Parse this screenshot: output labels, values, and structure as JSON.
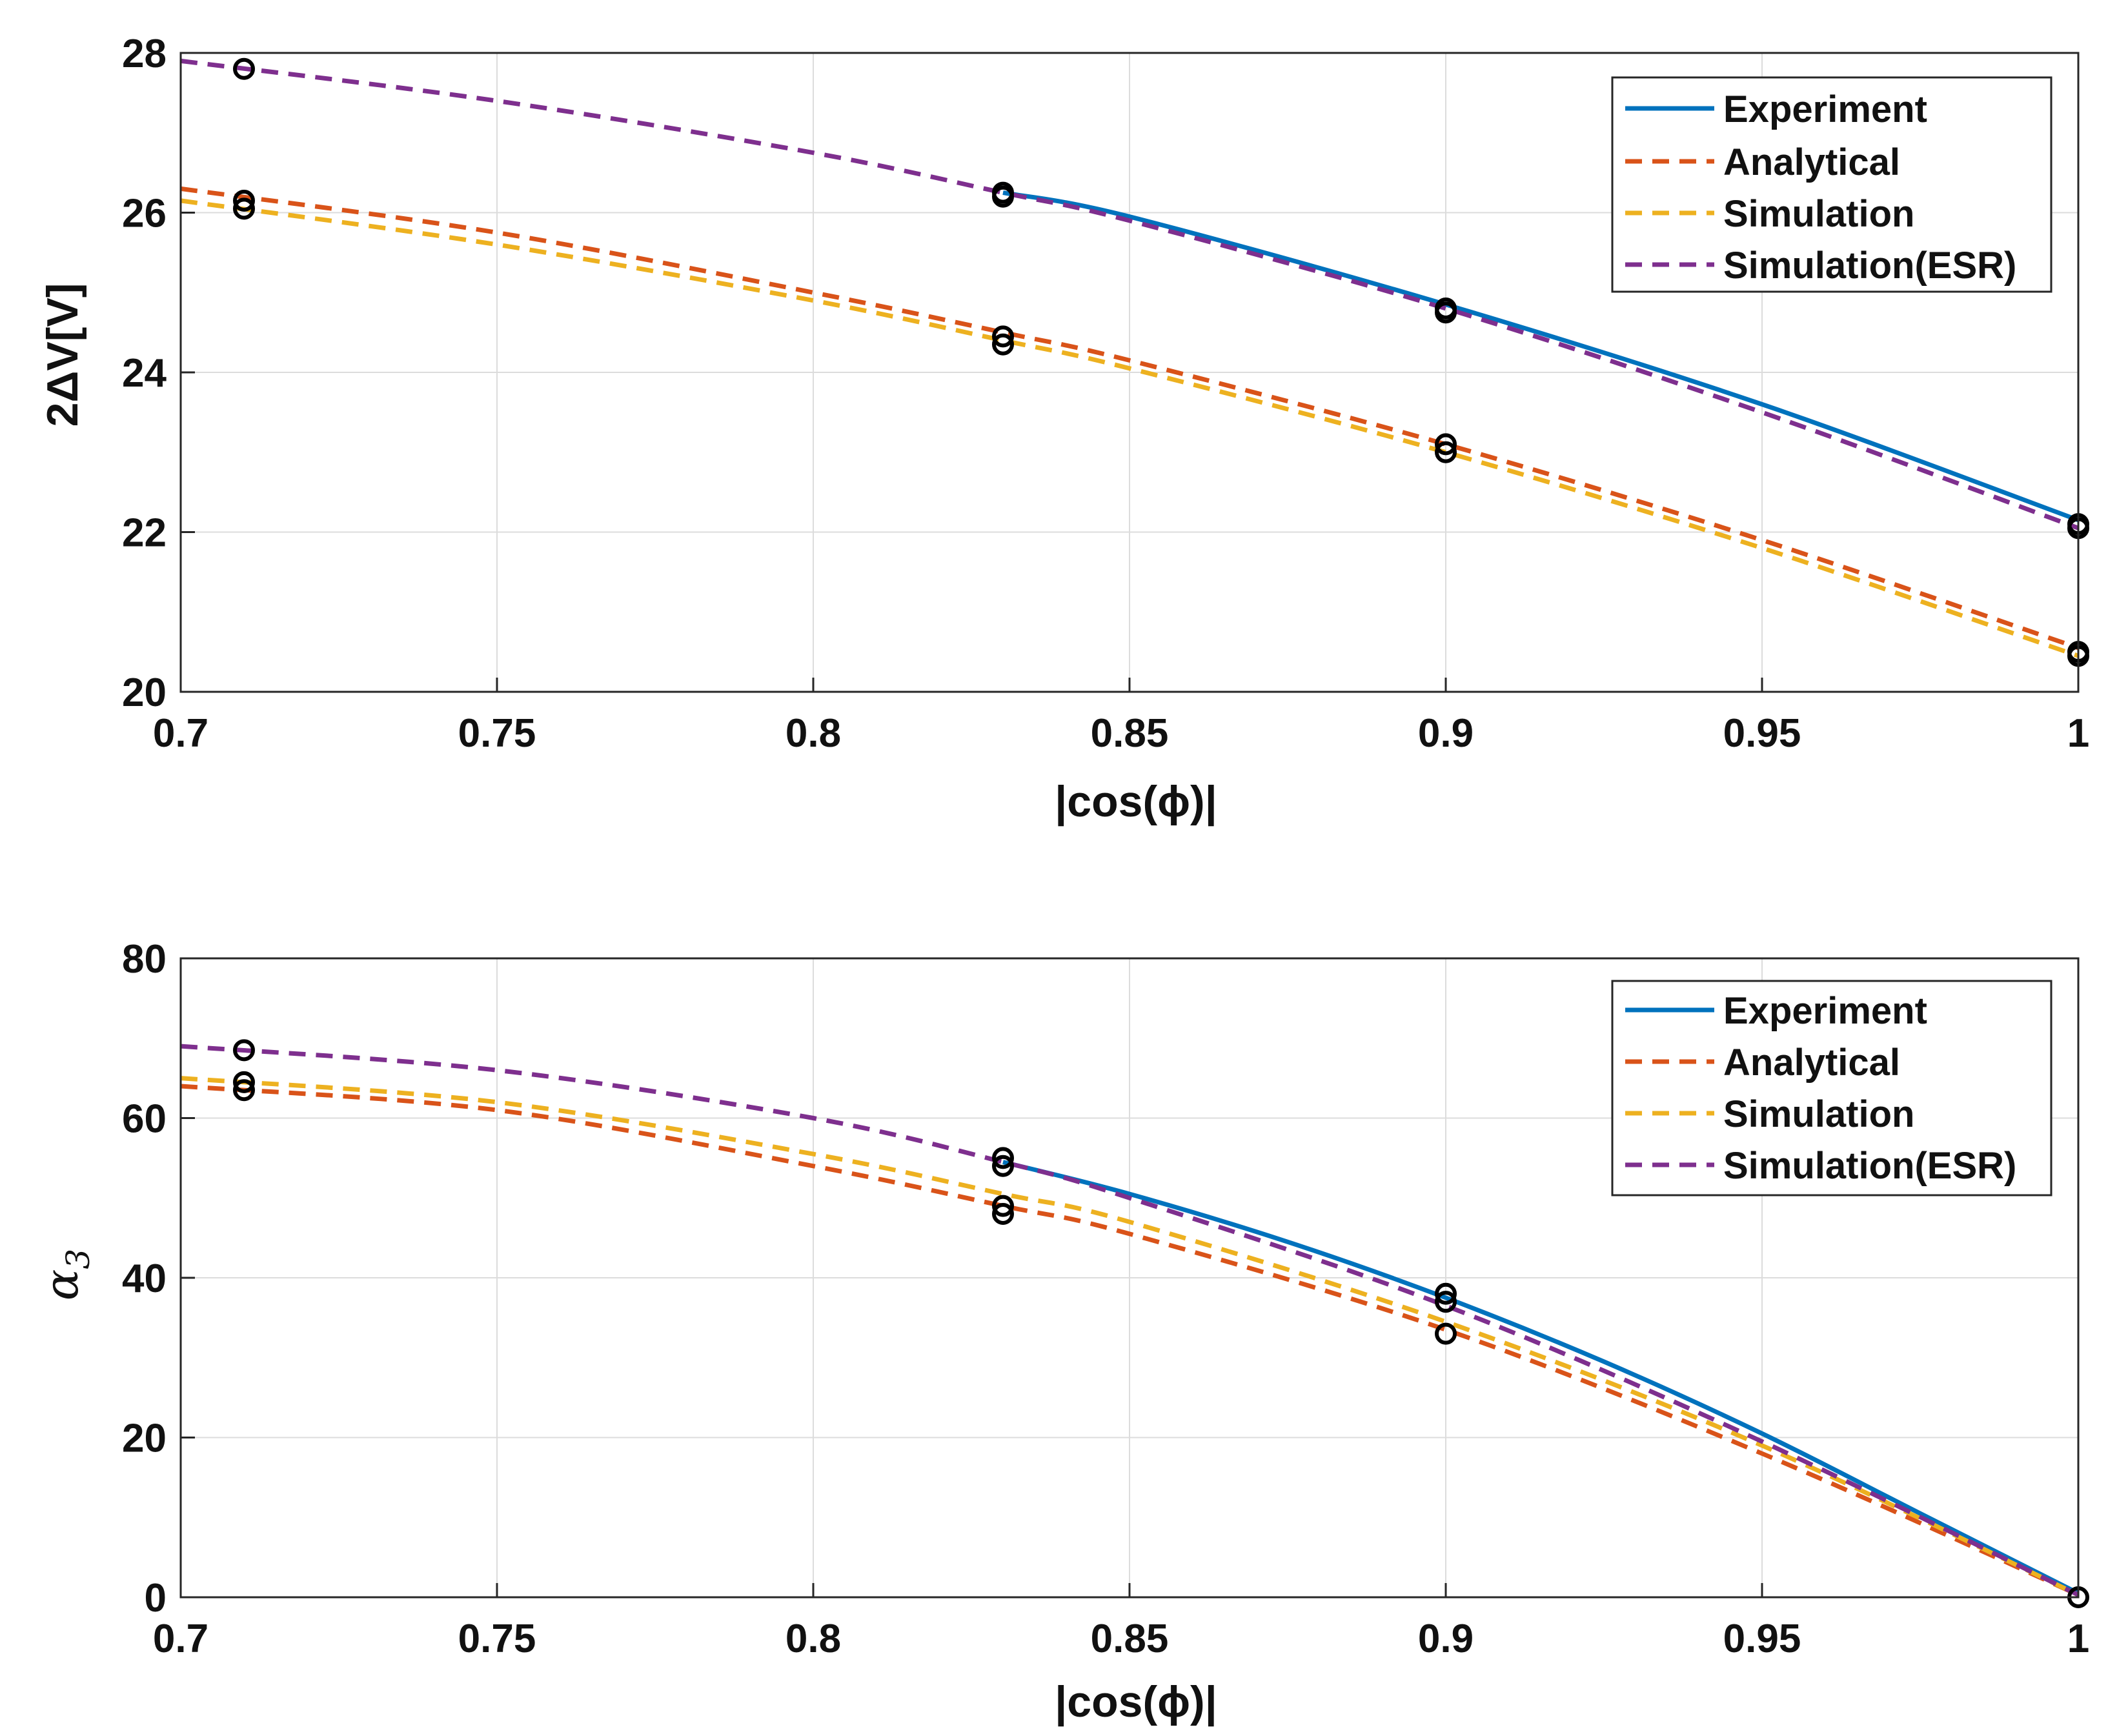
{
  "figure": {
    "colors": {
      "Experiment": "#0072BD",
      "Analytical": "#D95319",
      "Simulation": "#EDB120",
      "Simulation(ESR)": "#7E2F8E",
      "markers": "#000000",
      "grid": "#dcdcdc",
      "axis": "#262626"
    }
  },
  "chart_data": [
    {
      "type": "line",
      "xlabel": "|cos(ϕ)|",
      "ylabel": "2ΔV[V]",
      "xlim": [
        0.7,
        1.0
      ],
      "ylim": [
        20,
        28
      ],
      "xticks": [
        0.7,
        0.75,
        0.8,
        0.85,
        0.9,
        0.95,
        1.0
      ],
      "xtick_labels": [
        "0.7",
        "0.75",
        "0.8",
        "0.85",
        "0.9",
        "0.95",
        "1"
      ],
      "yticks": [
        20,
        22,
        24,
        26,
        28
      ],
      "ytick_labels": [
        "20",
        "22",
        "24",
        "26",
        "28"
      ],
      "grid": true,
      "legend_position": "top-right",
      "legend": [
        "Experiment",
        "Analytical",
        "Simulation",
        "Simulation(ESR)"
      ],
      "series": [
        {
          "name": "Experiment",
          "style": "solid",
          "x": [
            0.83,
            0.85,
            0.9,
            0.95,
            1.0
          ],
          "y": [
            26.25,
            25.95,
            24.85,
            23.6,
            22.15
          ]
        },
        {
          "name": "Analytical",
          "style": "dashed",
          "x": [
            0.7,
            0.75,
            0.8,
            0.83,
            0.85,
            0.9,
            0.95,
            1.0
          ],
          "y": [
            26.3,
            25.75,
            25.0,
            24.5,
            24.15,
            23.1,
            21.9,
            20.55
          ]
        },
        {
          "name": "Simulation",
          "style": "dashed",
          "x": [
            0.7,
            0.75,
            0.8,
            0.83,
            0.85,
            0.9,
            0.95,
            1.0
          ],
          "y": [
            26.15,
            25.6,
            24.9,
            24.4,
            24.05,
            23.0,
            21.8,
            20.45
          ]
        },
        {
          "name": "Simulation(ESR)",
          "style": "dashed",
          "x": [
            0.7,
            0.75,
            0.8,
            0.83,
            0.85,
            0.9,
            0.95,
            1.0
          ],
          "y": [
            27.9,
            27.4,
            26.75,
            26.25,
            25.9,
            24.8,
            23.5,
            22.05
          ]
        }
      ],
      "markers": [
        [
          0.71,
          27.8
        ],
        [
          0.71,
          26.15
        ],
        [
          0.71,
          26.05
        ],
        [
          0.83,
          26.25
        ],
        [
          0.83,
          26.2
        ],
        [
          0.83,
          24.45
        ],
        [
          0.83,
          24.35
        ],
        [
          0.9,
          24.8
        ],
        [
          0.9,
          24.75
        ],
        [
          0.9,
          23.1
        ],
        [
          0.9,
          23.0
        ],
        [
          1.0,
          22.1
        ],
        [
          1.0,
          22.05
        ],
        [
          1.0,
          20.5
        ],
        [
          1.0,
          20.45
        ]
      ]
    },
    {
      "type": "line",
      "xlabel": "|cos(ϕ)|",
      "ylabel": "α3",
      "ylabel_base": "α",
      "ylabel_sub": "3",
      "xlim": [
        0.7,
        1.0
      ],
      "ylim": [
        0,
        80
      ],
      "xticks": [
        0.7,
        0.75,
        0.8,
        0.85,
        0.9,
        0.95,
        1.0
      ],
      "xtick_labels": [
        "0.7",
        "0.75",
        "0.8",
        "0.85",
        "0.9",
        "0.95",
        "1"
      ],
      "yticks": [
        0,
        20,
        40,
        60,
        80
      ],
      "ytick_labels": [
        "0",
        "20",
        "40",
        "60",
        "80"
      ],
      "grid": true,
      "legend_position": "top-right",
      "legend": [
        "Experiment",
        "Analytical",
        "Simulation",
        "Simulation(ESR)"
      ],
      "series": [
        {
          "name": "Experiment",
          "style": "solid",
          "x": [
            0.83,
            0.85,
            0.875,
            0.9,
            0.925,
            0.95,
            0.975,
            1.0
          ],
          "y": [
            54.5,
            50.5,
            44.5,
            37.5,
            29.5,
            20.5,
            10.5,
            0.5
          ]
        },
        {
          "name": "Analytical",
          "style": "dashed",
          "x": [
            0.7,
            0.75,
            0.8,
            0.83,
            0.85,
            0.9,
            0.95,
            1.0
          ],
          "y": [
            64.0,
            61.0,
            54.0,
            49.0,
            45.5,
            33.5,
            18.0,
            0.3
          ]
        },
        {
          "name": "Simulation",
          "style": "dashed",
          "x": [
            0.7,
            0.75,
            0.8,
            0.83,
            0.85,
            0.9,
            0.95,
            1.0
          ],
          "y": [
            65.0,
            62.0,
            55.5,
            50.5,
            47.0,
            34.5,
            19.0,
            0.3
          ]
        },
        {
          "name": "Simulation(ESR)",
          "style": "dashed",
          "x": [
            0.7,
            0.75,
            0.8,
            0.83,
            0.85,
            0.9,
            0.95,
            1.0
          ],
          "y": [
            69.0,
            66.0,
            60.0,
            54.5,
            50.0,
            36.5,
            19.5,
            0.3
          ]
        }
      ],
      "markers": [
        [
          0.71,
          68.5
        ],
        [
          0.71,
          64.5
        ],
        [
          0.71,
          63.5
        ],
        [
          0.83,
          55.0
        ],
        [
          0.83,
          54.0
        ],
        [
          0.83,
          49.0
        ],
        [
          0.83,
          48.0
        ],
        [
          0.9,
          38.0
        ],
        [
          0.9,
          37.0
        ],
        [
          0.9,
          33.0
        ],
        [
          1.0,
          0.0
        ]
      ]
    }
  ]
}
